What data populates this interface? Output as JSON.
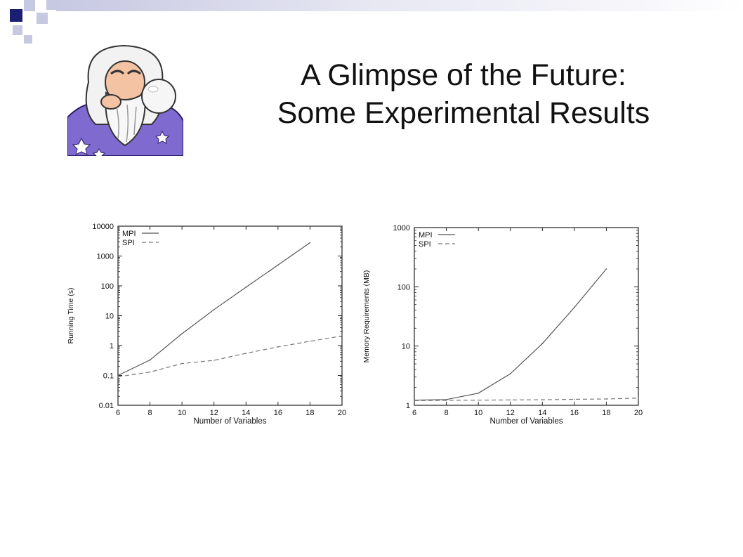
{
  "slide": {
    "title_line1": "A Glimpse of the Future:",
    "title_line2": "Some Experimental Results"
  },
  "colors": {
    "accent_dark": "#1b1f74",
    "accent_light": "#c7c8e2",
    "wizard_robe": "#7f6bd0"
  },
  "chart_data": [
    {
      "type": "line",
      "title": "",
      "xlabel": "Number of Variables",
      "ylabel": "Running Time (s)",
      "yscale": "log",
      "xlim": [
        6,
        20
      ],
      "ylim": [
        0.01,
        10000
      ],
      "xticks": [
        "6",
        "8",
        "10",
        "12",
        "14",
        "16",
        "18",
        "20"
      ],
      "yticks": [
        "0.01",
        "0.1",
        "1",
        "10",
        "100",
        "1000",
        "10000"
      ],
      "grid": false,
      "legend": "top-left",
      "series": [
        {
          "name": "MPI",
          "style": "solid",
          "x": [
            6,
            8,
            10,
            12,
            14,
            16,
            18
          ],
          "values": [
            0.1,
            0.33,
            2.5,
            16,
            90,
            500,
            2800
          ]
        },
        {
          "name": "SPI",
          "style": "dashed",
          "x": [
            6,
            8,
            10,
            12,
            14,
            16,
            18,
            20
          ],
          "values": [
            0.09,
            0.13,
            0.25,
            0.32,
            0.55,
            0.9,
            1.4,
            2.1
          ]
        }
      ]
    },
    {
      "type": "line",
      "title": "",
      "xlabel": "Number of Variables",
      "ylabel": "Memory Requirements (MB)",
      "yscale": "log",
      "xlim": [
        6,
        20
      ],
      "ylim": [
        1,
        1000
      ],
      "xticks": [
        "6",
        "8",
        "10",
        "12",
        "14",
        "16",
        "18",
        "20"
      ],
      "yticks": [
        "1",
        "10",
        "100",
        "1000"
      ],
      "grid": false,
      "legend": "top-left",
      "series": [
        {
          "name": "MPI",
          "style": "solid",
          "x": [
            6,
            8,
            10,
            12,
            14,
            16,
            18
          ],
          "values": [
            1.22,
            1.25,
            1.6,
            3.4,
            11,
            45,
            200
          ]
        },
        {
          "name": "SPI",
          "style": "dashed",
          "x": [
            6,
            8,
            10,
            12,
            14,
            16,
            18,
            20
          ],
          "values": [
            1.2,
            1.21,
            1.22,
            1.23,
            1.24,
            1.26,
            1.28,
            1.32
          ]
        }
      ]
    }
  ]
}
